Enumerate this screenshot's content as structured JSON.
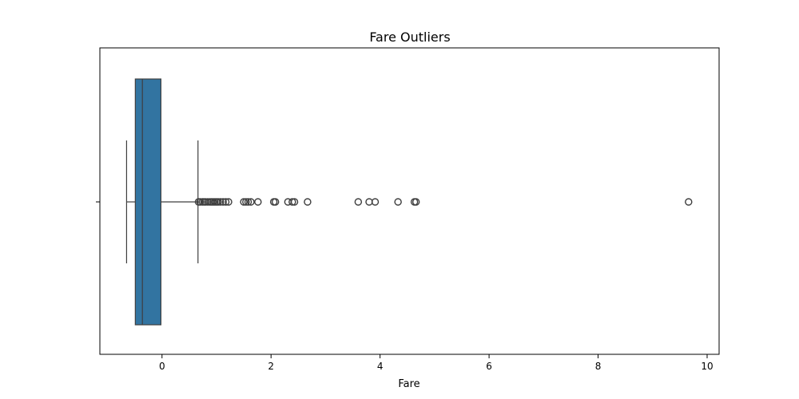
{
  "chart_data": {
    "type": "box",
    "title": "Fare Outliers",
    "xlabel": "Fare",
    "ylabel": "",
    "xlim": [
      -1.14,
      10.22
    ],
    "xticks": [
      0,
      2,
      4,
      6,
      8,
      10
    ],
    "xtick_labels": [
      "0",
      "2",
      "4",
      "6",
      "8",
      "10"
    ],
    "box": {
      "whisker_low": -0.65,
      "q1": -0.49,
      "median": -0.36,
      "q3": -0.02,
      "whisker_high": 0.66
    },
    "outliers": [
      0.67,
      0.7,
      0.74,
      0.77,
      0.8,
      0.84,
      0.88,
      0.91,
      0.94,
      0.97,
      1.0,
      1.03,
      1.07,
      1.12,
      1.17,
      1.22,
      1.5,
      1.54,
      1.58,
      1.63,
      1.76,
      2.05,
      2.08,
      2.31,
      2.39,
      2.43,
      2.67,
      3.6,
      3.8,
      3.91,
      4.33,
      4.63,
      4.66,
      9.66
    ],
    "colors": {
      "box_fill": "#3274a1",
      "line": "#3f3f3f",
      "axis": "#000000"
    }
  }
}
